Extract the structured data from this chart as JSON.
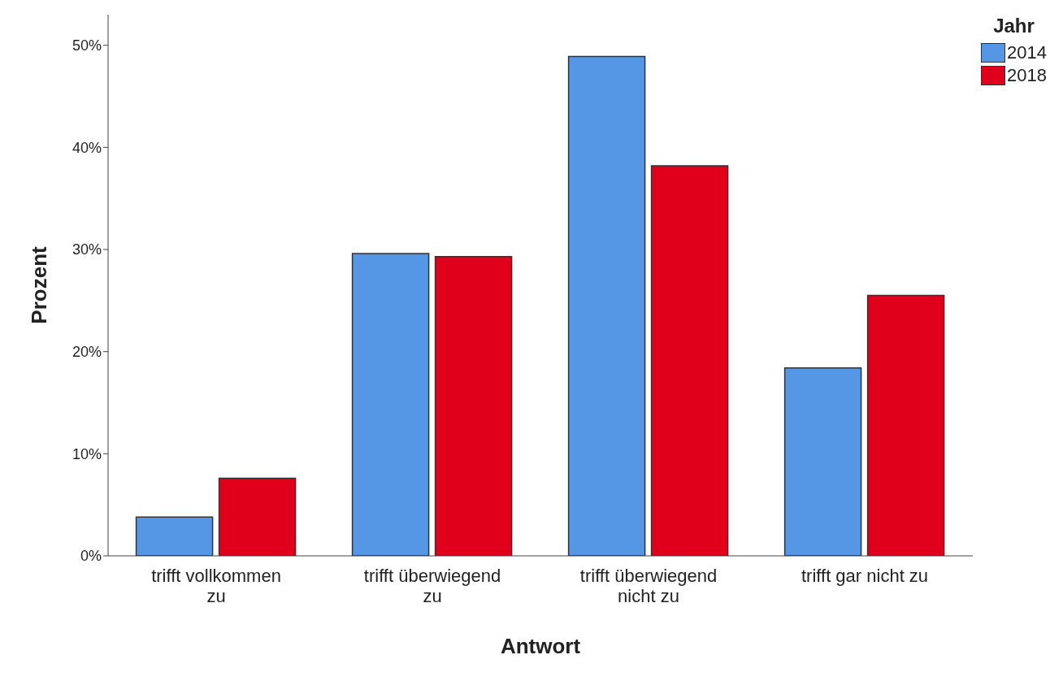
{
  "chart_data": {
    "type": "bar",
    "xlabel": "Antwort",
    "ylabel": "Prozent",
    "legend_title": "Jahr",
    "legend": "top right",
    "grid": false,
    "categories": [
      "trifft vollkommen zu",
      "trifft überwiegend zu",
      "trifft überwiegend nicht zu",
      "trifft gar nicht zu"
    ],
    "series": [
      {
        "name": "2014",
        "color": "#5597e4",
        "values": [
          3.8,
          29.6,
          48.9,
          18.4
        ]
      },
      {
        "name": "2018",
        "color": "#e0001b",
        "values": [
          7.6,
          29.3,
          38.2,
          25.5
        ]
      }
    ],
    "ylim": [
      0,
      53
    ],
    "yticks": [
      {
        "value": 0,
        "label": "0%"
      },
      {
        "value": 10,
        "label": "10%"
      },
      {
        "value": 20,
        "label": "20%"
      },
      {
        "value": 30,
        "label": "30%"
      },
      {
        "value": 40,
        "label": "40%"
      },
      {
        "value": 50,
        "label": "50%"
      }
    ]
  }
}
